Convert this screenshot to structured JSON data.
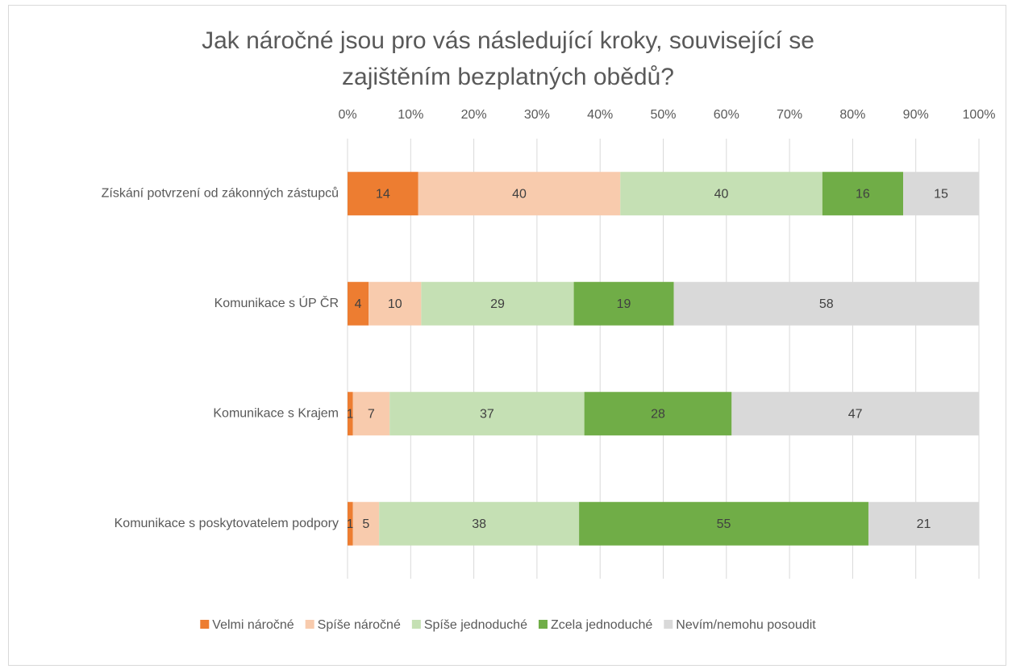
{
  "chart_data": {
    "type": "bar",
    "orientation": "horizontal",
    "stacking": "percent",
    "title": "Jak náročné jsou pro vás následující kroky, související se zajištěním bezplatných obědů?",
    "categories": [
      "Získání potvrzení od zákonných zástupců",
      "Komunikace s ÚP ČR",
      "Komunikace s Krajem",
      "Komunikace s poskytovatelem podpory"
    ],
    "series": [
      {
        "name": "Velmi náročné",
        "color": "#ed7d31",
        "values": [
          14,
          4,
          1,
          1
        ]
      },
      {
        "name": "Spíše náročné",
        "color": "#f8cbad",
        "values": [
          40,
          10,
          7,
          5
        ]
      },
      {
        "name": "Spíše jednoduché",
        "color": "#c5e0b4",
        "values": [
          40,
          29,
          37,
          38
        ]
      },
      {
        "name": "Zcela jednoduché",
        "color": "#70ad47",
        "values": [
          16,
          19,
          28,
          55
        ]
      },
      {
        "name": "Nevím/nemohu posoudit",
        "color": "#d9d9d9",
        "values": [
          15,
          58,
          47,
          21
        ]
      }
    ],
    "xlim": [
      0,
      100
    ],
    "xticks": [
      {
        "value": 0,
        "label": "0%"
      },
      {
        "value": 10,
        "label": "10%"
      },
      {
        "value": 20,
        "label": "20%"
      },
      {
        "value": 30,
        "label": "30%"
      },
      {
        "value": 40,
        "label": "40%"
      },
      {
        "value": 50,
        "label": "50%"
      },
      {
        "value": 60,
        "label": "60%"
      },
      {
        "value": 70,
        "label": "70%"
      },
      {
        "value": 80,
        "label": "80%"
      },
      {
        "value": 90,
        "label": "90%"
      },
      {
        "value": 100,
        "label": "100%"
      }
    ],
    "grid": true,
    "legend": "bottom"
  }
}
